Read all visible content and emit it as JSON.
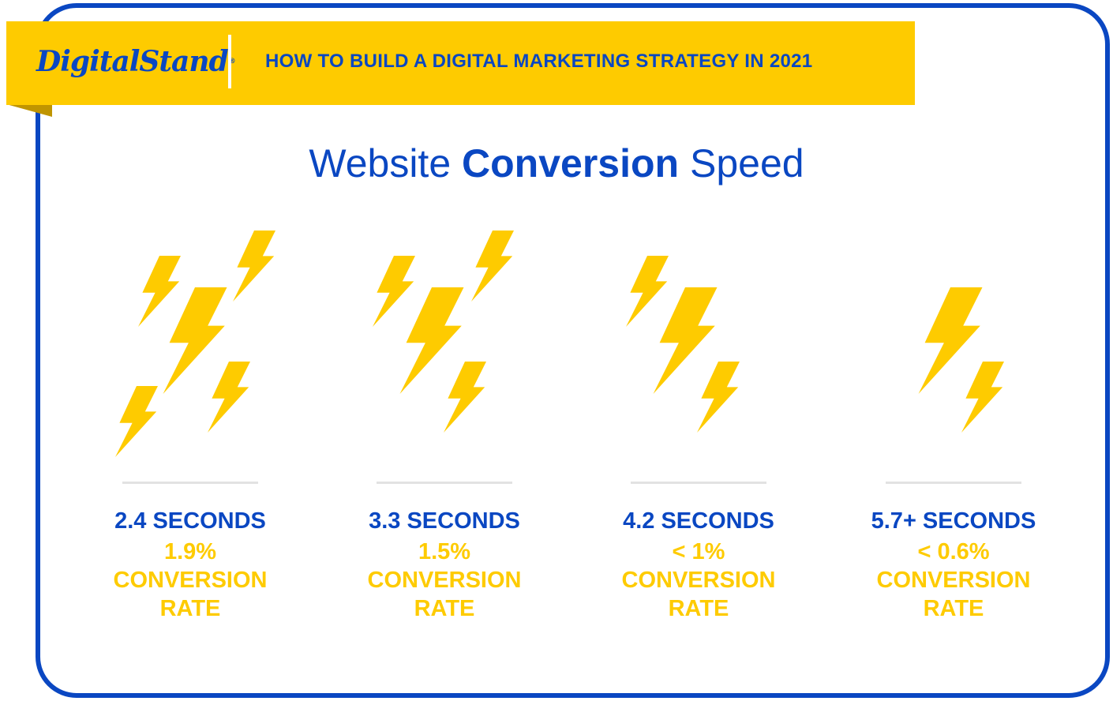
{
  "header": {
    "logo_text": "DigitalStand",
    "logo_reg": "®",
    "title": "HOW TO BUILD A DIGITAL MARKETING STRATEGY IN 2021"
  },
  "main": {
    "title_part1": "Website ",
    "title_bold": "Conversion",
    "title_part2": " Speed"
  },
  "stats": [
    {
      "seconds": "2.4 SECONDS",
      "rate": "1.9%",
      "label_line1": "CONVERSION",
      "label_line2": "RATE",
      "bolts": 5
    },
    {
      "seconds": "3.3 SECONDS",
      "rate": "1.5%",
      "label_line1": "CONVERSION",
      "label_line2": "RATE",
      "bolts": 4
    },
    {
      "seconds": "4.2 SECONDS",
      "rate": "< 1%",
      "label_line1": "CONVERSION",
      "label_line2": "RATE",
      "bolts": 3
    },
    {
      "seconds": "5.7+ SECONDS",
      "rate": "< 0.6%",
      "label_line1": "CONVERSION",
      "label_line2": "RATE",
      "bolts": 2
    }
  ],
  "colors": {
    "brand_blue": "#0a47c2",
    "brand_yellow": "#fecb00"
  }
}
